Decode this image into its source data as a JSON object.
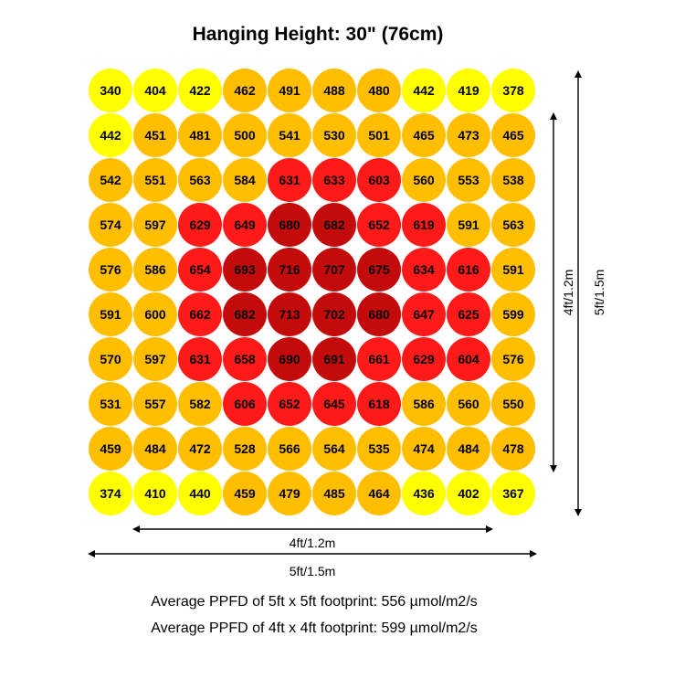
{
  "title": "Hanging Height: 30\" (76cm)",
  "chart_data": {
    "type": "heatmap",
    "title": "Hanging Height: 30\" (76cm)",
    "unit": "µmol/m2/s",
    "rows": [
      [
        340,
        404,
        422,
        462,
        491,
        488,
        480,
        442,
        419,
        378
      ],
      [
        442,
        451,
        481,
        500,
        541,
        530,
        501,
        465,
        473,
        465
      ],
      [
        542,
        551,
        563,
        584,
        631,
        633,
        603,
        560,
        553,
        538
      ],
      [
        574,
        597,
        629,
        649,
        680,
        682,
        652,
        619,
        591,
        563
      ],
      [
        576,
        586,
        654,
        693,
        716,
        707,
        675,
        634,
        616,
        591
      ],
      [
        591,
        600,
        662,
        682,
        713,
        702,
        680,
        647,
        625,
        599
      ],
      [
        570,
        597,
        631,
        658,
        690,
        691,
        661,
        629,
        604,
        576
      ],
      [
        531,
        557,
        582,
        606,
        652,
        645,
        618,
        586,
        560,
        550
      ],
      [
        459,
        484,
        472,
        528,
        566,
        564,
        535,
        474,
        484,
        478
      ],
      [
        374,
        410,
        440,
        459,
        479,
        485,
        464,
        436,
        402,
        367
      ]
    ],
    "color_scale": [
      {
        "max": 450,
        "color": "#ffff00"
      },
      {
        "max": 600,
        "color": "#ffbe00"
      },
      {
        "max": 670,
        "color": "#ff1a1a"
      },
      {
        "max": 9999,
        "color": "#c40b0b"
      }
    ],
    "dimensions": {
      "inner_horizontal": "4ft/1.2m",
      "outer_horizontal": "5ft/1.5m",
      "inner_vertical": "4ft/1.2m",
      "outer_vertical": "5ft/1.5m"
    }
  },
  "footnotes": {
    "avg_5ft": "Average PPFD of 5ft x 5ft footprint: 556 µmol/m2/s",
    "avg_4ft": "Average PPFD of 4ft x 4ft footprint: 599 µmol/m2/s"
  }
}
